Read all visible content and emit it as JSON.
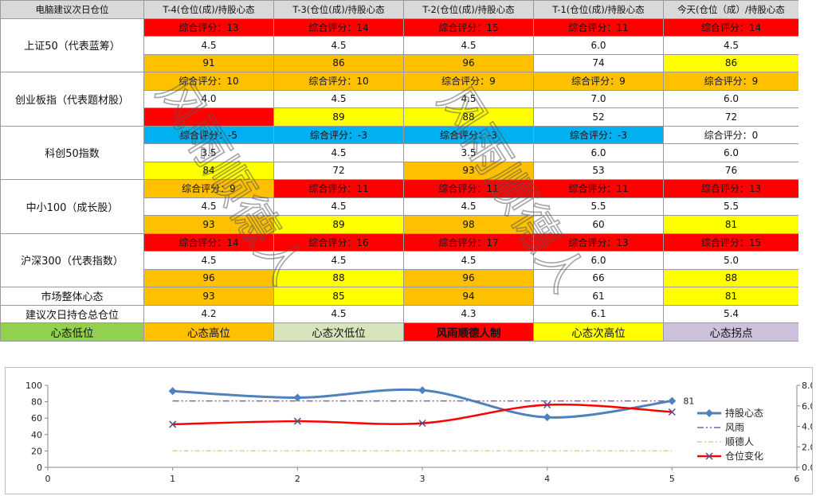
{
  "header": {
    "corner": "电脑建议次日仓位",
    "columns": [
      "T-4(仓位(成)/持股心态",
      "T-3(仓位(成)/持股心态",
      "T-2(仓位(成)/持股心态",
      "T-1(仓位(成)/持股心态",
      "今天(仓位（成）/持股心态"
    ]
  },
  "rows": [
    {
      "name": "上证50（代表蓝筹）",
      "scores": [
        "综合评分：13",
        "综合评分：14",
        "综合评分：15",
        "综合评分：11",
        "综合评分：14"
      ],
      "positions": [
        "4.5",
        "4.5",
        "4.5",
        "6.0",
        "4.5"
      ],
      "sentiments": [
        "91",
        "86",
        "96",
        "74",
        "86"
      ]
    },
    {
      "name": "创业板指（代表题材股）",
      "scores": [
        "综合评分：10",
        "综合评分：10",
        "综合评分：9",
        "综合评分：9",
        "综合评分：9"
      ],
      "positions": [
        "4.0",
        "4.5",
        "4.5",
        "7.0",
        "6.0"
      ],
      "sentiments": [
        "",
        "89",
        "88",
        "52",
        "72"
      ]
    },
    {
      "name": "科创50指数",
      "scores": [
        "综合评分：-5",
        "综合评分：-3",
        "综合评分：-3",
        "综合评分：-3",
        "综合评分：0"
      ],
      "positions": [
        "3.5",
        "4.5",
        "3.5",
        "6.0",
        "6.0"
      ],
      "sentiments": [
        "84",
        "72",
        "93",
        "53",
        "76"
      ]
    },
    {
      "name": "中小100（成长股）",
      "scores": [
        "综合评分：9",
        "综合评分：11",
        "综合评分：11",
        "综合评分：11",
        "综合评分：13"
      ],
      "positions": [
        "4.5",
        "4.5",
        "4.5",
        "5.5",
        "5.5"
      ],
      "sentiments": [
        "93",
        "89",
        "98",
        "60",
        "81"
      ]
    },
    {
      "name": "沪深300（代表指数）",
      "scores": [
        "综合评分：14",
        "综合评分：16",
        "综合评分：17",
        "综合评分：13",
        "综合评分：15"
      ],
      "positions": [
        "4.5",
        "4.5",
        "4.5",
        "6.0",
        "5.0"
      ],
      "sentiments": [
        "96",
        "88",
        "96",
        "66",
        "88"
      ]
    }
  ],
  "market_sentiment": {
    "label": "市场整体心态",
    "values": [
      "93",
      "85",
      "94",
      "61",
      "81"
    ]
  },
  "suggested_position": {
    "label": "建议次日持仓总仓位",
    "values": [
      "4.2",
      "4.5",
      "4.3",
      "6.1",
      "5.4"
    ]
  },
  "legend_bar": [
    "心态低位",
    "心态高位",
    "心态次低位",
    "风雨顺德人制",
    "心态次高位",
    "心态拐点"
  ],
  "watermark": "风雨顺德人",
  "colors": {
    "red": "#ff0000",
    "orange": "#ffc000",
    "yellow": "#ffff00",
    "blue": "#00b0f0",
    "green": "#92d050",
    "pale_green": "#d8e4bc",
    "lavender": "#ccc0da",
    "white": "#ffffff",
    "header": "#d9d9d9"
  },
  "chart_data": {
    "type": "line",
    "x_axis": {
      "min": 0,
      "max": 6,
      "ticks": [
        "0",
        "1",
        "2",
        "3",
        "4",
        "5",
        "6"
      ]
    },
    "y_axis_left": {
      "min": 0,
      "max": 100,
      "ticks": [
        "0",
        "20",
        "40",
        "60",
        "80",
        "100"
      ]
    },
    "y_axis_right": {
      "min": 0,
      "max": 8,
      "ticks": [
        "0.0",
        "2.0",
        "4.0",
        "6.0",
        "8.0"
      ]
    },
    "data_label": "81",
    "legend_position": "right",
    "series": [
      {
        "name": "持股心态",
        "axis": "left",
        "color": "#4f81bd",
        "x": [
          1,
          2,
          3,
          4,
          5
        ],
        "y": [
          93,
          85,
          94,
          61,
          81
        ]
      },
      {
        "name": "风雨",
        "axis": "left",
        "color": "#8064a2",
        "x": [
          1,
          5
        ],
        "y": [
          81,
          81
        ]
      },
      {
        "name": "顺德人",
        "axis": "left",
        "color": "#c4d79b",
        "x": [
          1,
          5
        ],
        "y": [
          20,
          20
        ]
      },
      {
        "name": "仓位变化",
        "axis": "right",
        "color": "#ff0000",
        "x": [
          1,
          2,
          3,
          4,
          5
        ],
        "y": [
          4.2,
          4.5,
          4.3,
          6.1,
          5.4
        ]
      }
    ]
  }
}
